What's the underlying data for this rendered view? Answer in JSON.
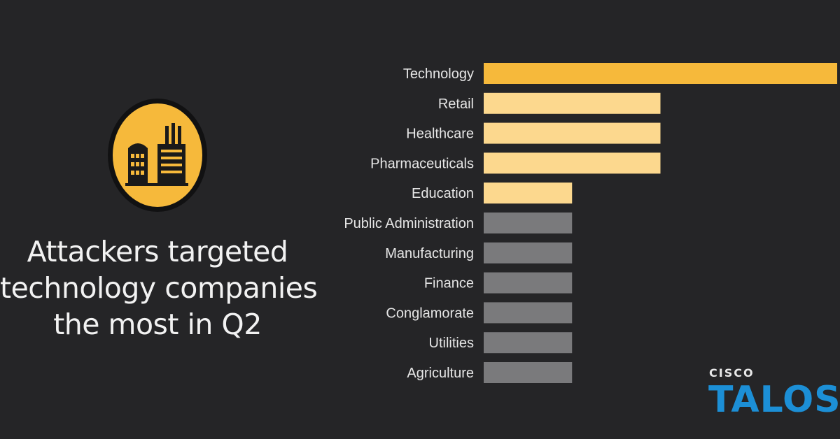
{
  "headline": {
    "line1": "Attackers targeted",
    "line2": "technology companies",
    "line3": "the most in Q2"
  },
  "icon": {
    "name": "factory-buildings-icon",
    "circle_color": "#f6b93b"
  },
  "logo": {
    "small": "CISCO",
    "big": "TALOS"
  },
  "colors": {
    "background": "#252527",
    "top": "#f6b93b",
    "highlight": "#fcd88e",
    "other": "#7a7a7c",
    "logo_blue": "#1c8fd6"
  },
  "chart_data": {
    "type": "bar",
    "orientation": "horizontal",
    "categories": [
      "Technology",
      "Retail",
      "Healthcare",
      "Pharmaceuticals",
      "Education",
      "Public Administration",
      "Manufacturing",
      "Finance",
      "Conglamorate",
      "Utilities",
      "Agriculture"
    ],
    "values": [
      8,
      4,
      4,
      4,
      2,
      2,
      2,
      2,
      2,
      2,
      2
    ],
    "bar_colors": [
      "#f6b93b",
      "#fcd88e",
      "#fcd88e",
      "#fcd88e",
      "#fcd88e",
      "#7a7a7c",
      "#7a7a7c",
      "#7a7a7c",
      "#7a7a7c",
      "#7a7a7c",
      "#7a7a7c"
    ],
    "title": "",
    "xlabel": "",
    "ylabel": "",
    "xlim": [
      0,
      8
    ],
    "grid": false,
    "legend": "none"
  }
}
